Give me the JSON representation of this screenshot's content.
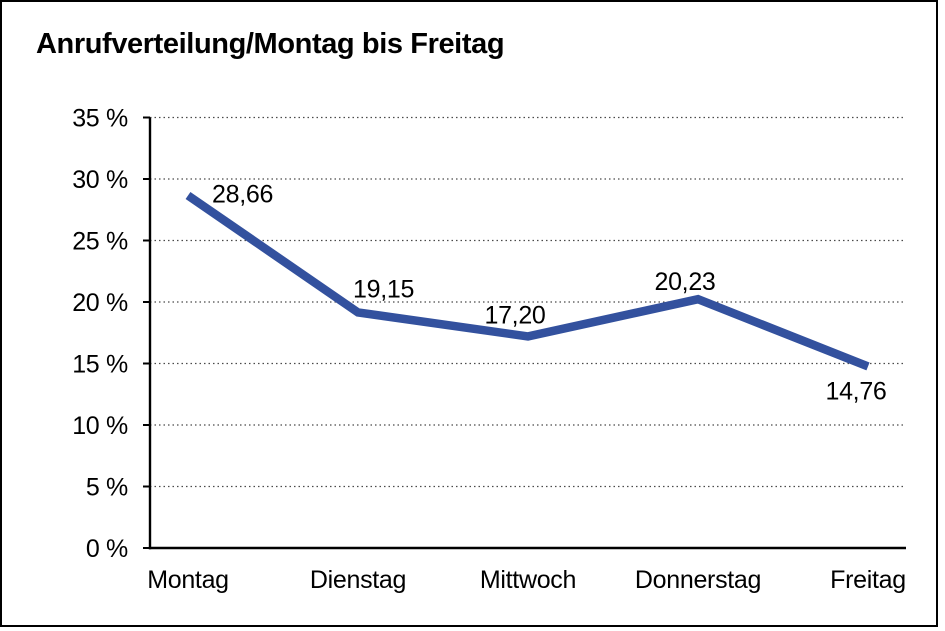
{
  "title": "Anrufverteilung/Montag bis Freitag",
  "chart_data": {
    "type": "line",
    "title": "Anrufverteilung/Montag bis Freitag",
    "categories": [
      "Montag",
      "Dienstag",
      "Mittwoch",
      "Donnerstag",
      "Freitag"
    ],
    "series": [
      {
        "name": "Anrufverteilung",
        "values": [
          28.66,
          19.15,
          17.2,
          20.23,
          14.76
        ]
      }
    ],
    "point_labels": [
      "28,66",
      "19,15",
      "17,20",
      "20,23",
      "14,76"
    ],
    "y_tick_labels": [
      "0 %",
      "5 %",
      "10 %",
      "15 %",
      "20 %",
      "25 %",
      "30 %",
      "35 %"
    ],
    "ylim": [
      0,
      35
    ],
    "y_step": 5,
    "grid": "horizontal-dotted",
    "legend": "none",
    "colors": {
      "line": "#33519e",
      "axis": "#000000",
      "gridline": "#4a4a4a",
      "text": "#000000",
      "background": "#ffffff",
      "frame_border": "#000000"
    }
  }
}
